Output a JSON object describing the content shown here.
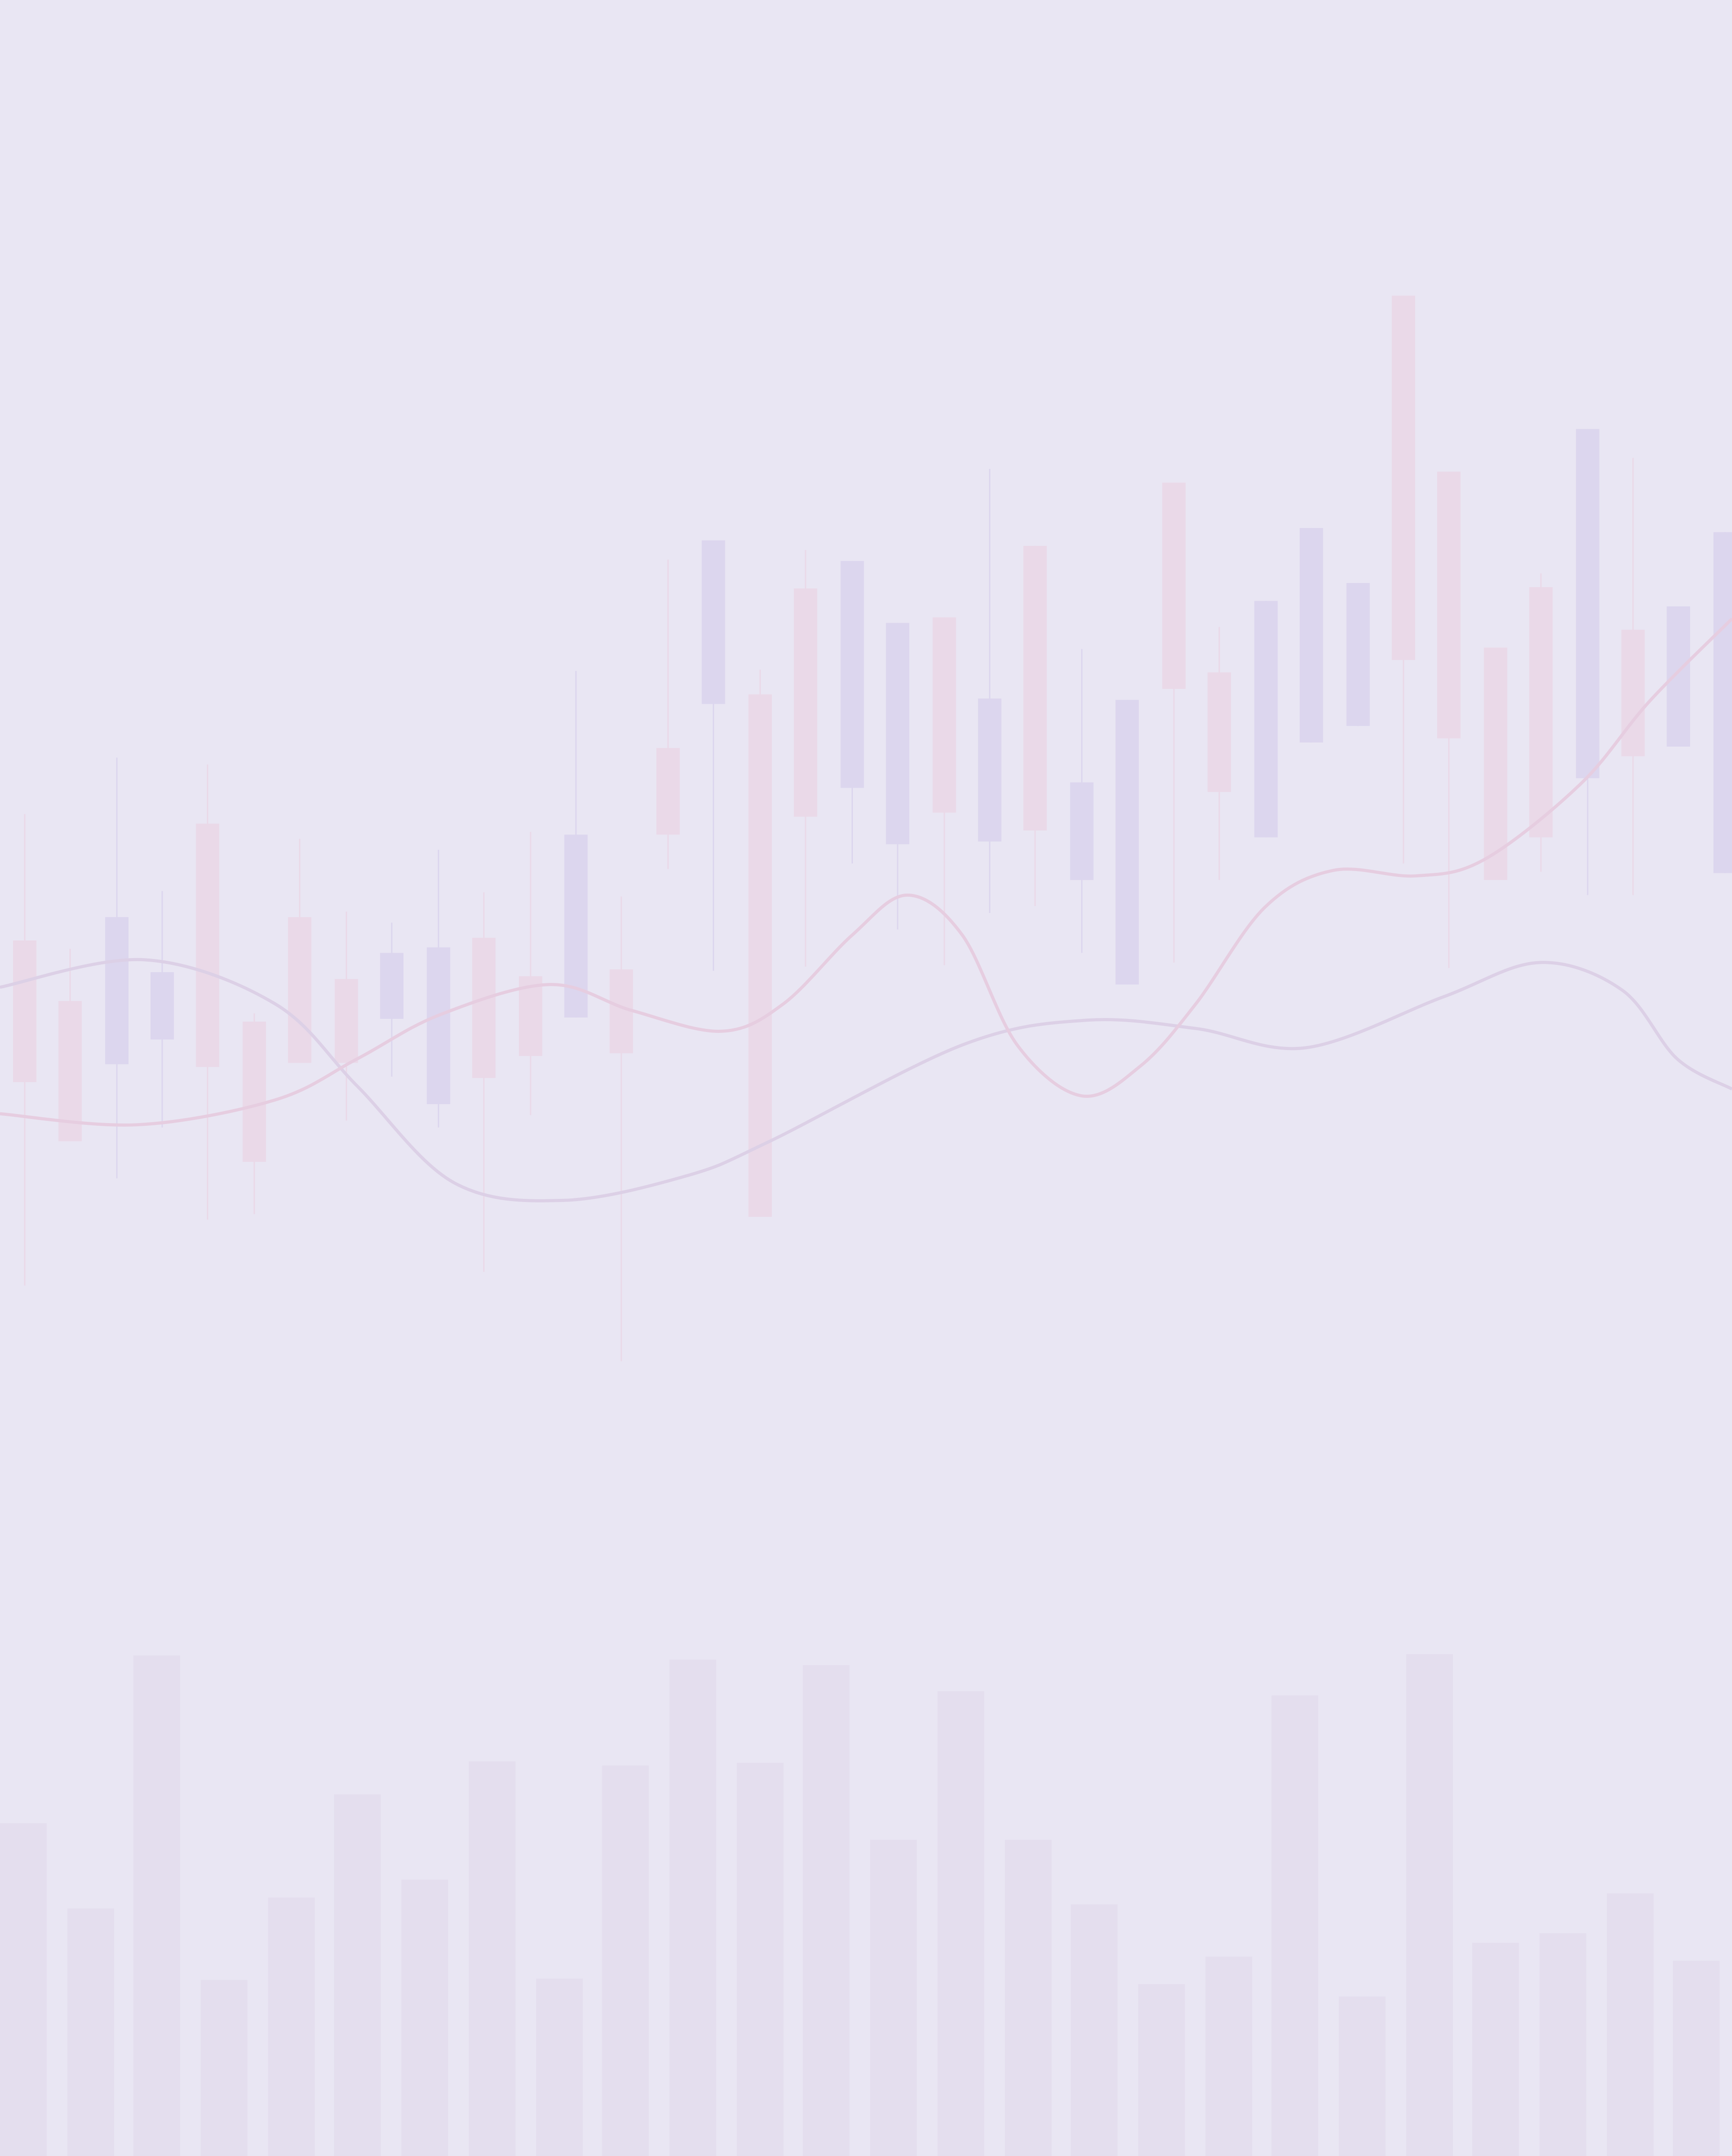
{
  "chart_data": [
    {
      "type": "candlestick",
      "up_color": "#dcd6ee",
      "down_color": "#ead9e8",
      "xlim": [
        0,
        1260
      ],
      "ylim": [
        0,
        1568
      ],
      "x": [
        18,
        51,
        85,
        118,
        151,
        185,
        218,
        252,
        285,
        319,
        352,
        386,
        419,
        452,
        486,
        519,
        553,
        586,
        620,
        653,
        687,
        720,
        753,
        787,
        820,
        854,
        887,
        921,
        954,
        988,
        1021,
        1054,
        1088,
        1121,
        1155,
        1188,
        1221,
        1255
      ],
      "open": [
        884,
        840,
        794,
        812,
        969,
        825,
        901,
        856,
        827,
        765,
        886,
        858,
        828,
        863,
        1024,
        1056,
        1063,
        1140,
        995,
        954,
        1119,
        956,
        1171,
        928,
        852,
        1217,
        1079,
        959,
        1028,
        1040,
        1353,
        1225,
        1097,
        1141,
        1002,
        1110,
        1025,
        933
      ],
      "high": [
        976,
        878,
        1017,
        920,
        1012,
        831,
        958,
        905,
        897,
        950,
        919,
        963,
        1080,
        916,
        1161,
        1175,
        1081,
        1168,
        1160,
        1115,
        1119,
        1227,
        1171,
        1096,
        1059,
        1217,
        1112,
        1131,
        1184,
        1144,
        1353,
        1225,
        1097,
        1151,
        1256,
        1235,
        1127,
        1181
      ],
      "low": [
        633,
        738,
        711,
        748,
        681,
        685,
        795,
        753,
        785,
        748,
        643,
        757,
        828,
        578,
        936,
        862,
        683,
        865,
        940,
        892,
        866,
        904,
        909,
        875,
        852,
        868,
        928,
        959,
        1028,
        1040,
        940,
        864,
        928,
        934,
        917,
        917,
        1025,
        933
      ],
      "close": [
        781,
        738,
        901,
        861,
        792,
        723,
        795,
        795,
        875,
        879,
        784,
        800,
        961,
        802,
        961,
        1175,
        683,
        974,
        1160,
        1115,
        977,
        1060,
        964,
        999,
        1059,
        1067,
        992,
        1131,
        1184,
        1144,
        1088,
        1031,
        928,
        959,
        1256,
        1018,
        1127,
        1181
      ]
    },
    {
      "type": "line",
      "xlim": [
        0,
        1260
      ],
      "ylim": [
        0,
        1568
      ],
      "series": [
        {
          "color": "#dcd0e6",
          "x": [
            0,
            105,
            200,
            260,
            330,
            410,
            500,
            560,
            700,
            790,
            870,
            950,
            1050,
            1120,
            1180,
            1220,
            1260
          ],
          "values": [
            850,
            870,
            838,
            778,
            708,
            695,
            713,
            738,
            808,
            826,
            820,
            806,
            843,
            868,
            848,
            798,
            776
          ]
        },
        {
          "color": "#e6cde0",
          "x": [
            0,
            100,
            200,
            260,
            320,
            400,
            460,
            525,
            570,
            620,
            660,
            700,
            740,
            787,
            830,
            870,
            920,
            970,
            1030,
            1080,
            1150,
            1200,
            1260
          ],
          "values": [
            758,
            750,
            768,
            798,
            830,
            852,
            833,
            818,
            838,
            888,
            917,
            888,
            808,
            771,
            793,
            838,
            908,
            935,
            931,
            943,
            998,
            1058,
            1118
          ]
        }
      ]
    },
    {
      "type": "bar",
      "color": "#e4deee",
      "xlim": [
        0,
        1260
      ],
      "ylim": [
        0,
        1568
      ],
      "x": [
        17,
        66,
        114,
        163,
        212,
        260,
        309,
        358,
        407,
        455,
        504,
        553,
        601,
        650,
        699,
        748,
        796,
        845,
        894,
        942,
        991,
        1040,
        1088,
        1137,
        1186,
        1234
      ],
      "values": [
        242,
        180,
        364,
        128,
        188,
        263,
        201,
        287,
        129,
        284,
        361,
        286,
        357,
        230,
        338,
        230,
        183,
        125,
        145,
        335,
        116,
        365,
        155,
        162,
        191,
        142
      ]
    }
  ]
}
